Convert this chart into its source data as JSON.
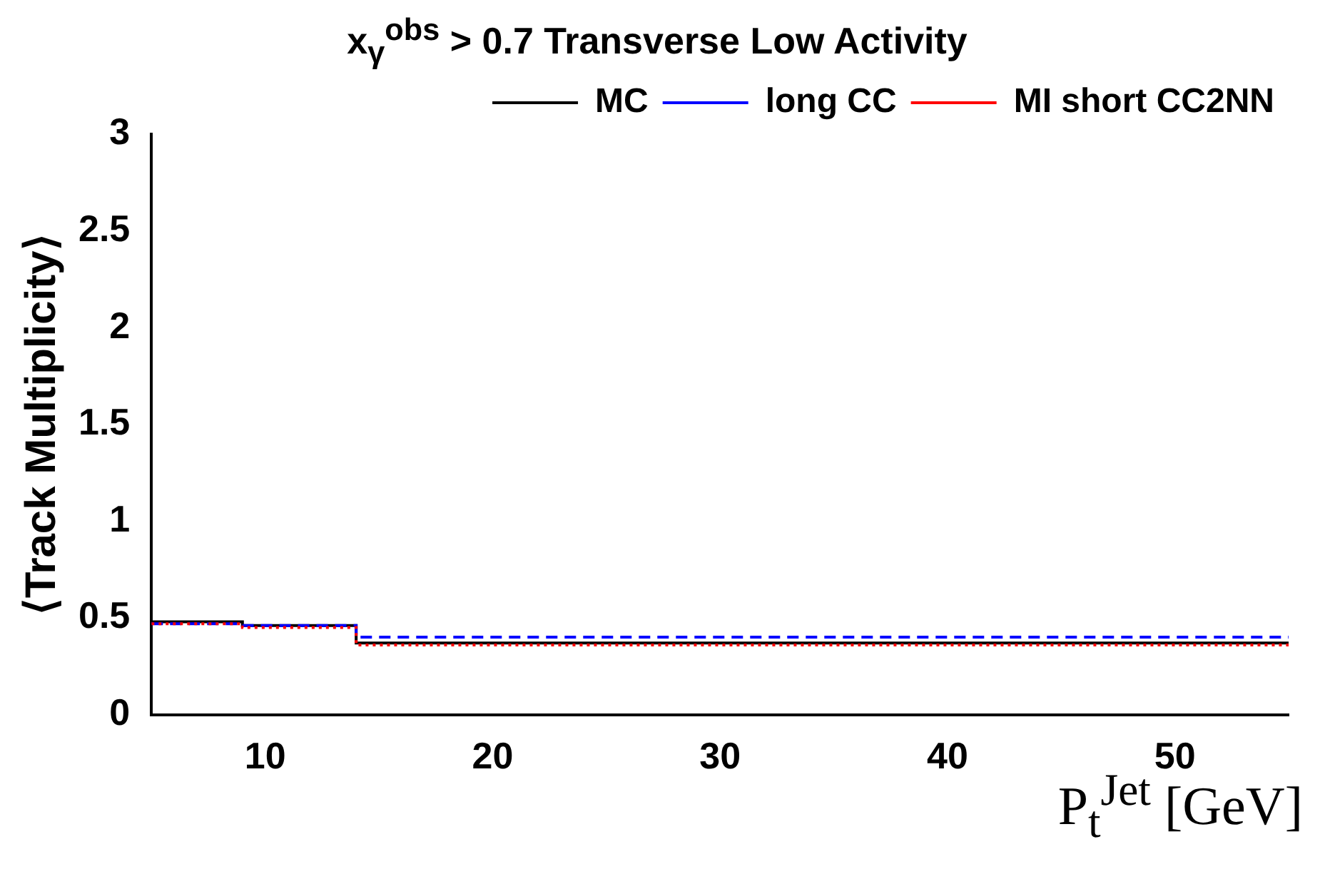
{
  "chart_data": {
    "type": "histogram",
    "title": "x$_{γ}$$^{obs}$ > 0.7 Transverse Low Activity",
    "xlabel": "P$_{t}$$^{Jet}$ [GeV]",
    "ylabel": "⟨Track Multiplicity⟩",
    "bins": [
      5,
      9,
      14,
      55
    ],
    "series": [
      {
        "name": "MC",
        "color": "#000000",
        "line_style": "solid",
        "values": [
          0.48,
          0.46,
          0.37
        ]
      },
      {
        "name": "long CC",
        "color": "#0000ff",
        "line_style": "dashed",
        "values": [
          0.47,
          0.46,
          0.4
        ]
      },
      {
        "name": "MI short CC2NN",
        "color": "#ff0000",
        "line_style": "dotted",
        "values": [
          0.47,
          0.45,
          0.36
        ]
      }
    ],
    "xlim": [
      5,
      55
    ],
    "xticks": [
      10,
      20,
      30,
      40,
      50
    ],
    "ylim": [
      0,
      3
    ],
    "yticks": [
      0,
      0.5,
      1,
      1.5,
      2,
      2.5,
      3
    ],
    "grid": false,
    "legend": "top",
    "marker": "none"
  }
}
